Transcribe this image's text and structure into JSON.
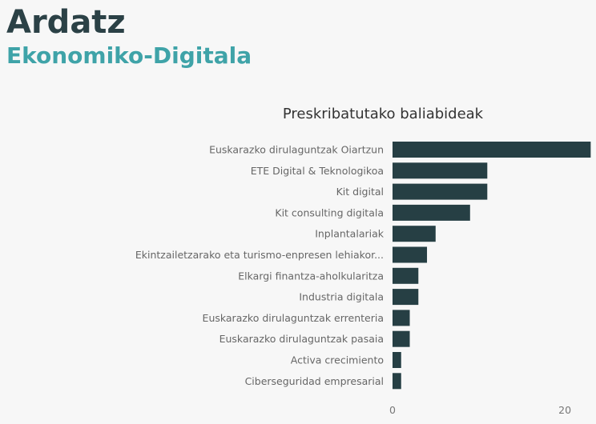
{
  "header": {
    "title": "Ardatz",
    "subtitle": "Ekonomiko-Digitala"
  },
  "colors": {
    "bar": "#263f44",
    "title": "#2b4146",
    "subtitle": "#3fa3a8"
  },
  "chart_data": {
    "type": "bar",
    "orientation": "horizontal",
    "title": "Preskribatutako baliabideak",
    "xlabel": "",
    "ylabel": "",
    "xlim": [
      0,
      22.5
    ],
    "xticks": [
      0,
      20
    ],
    "grid": false,
    "categories": [
      "Euskarazko dirulaguntzak Oiartzun",
      "ETE Digital & Teknologikoa",
      "Kit digital",
      "Kit consulting digitala",
      "Inplantalariak",
      "Ekintzailetzarako eta turismo-enpresen lehiakor...",
      "Elkargi finantza-aholkularitza",
      "Industria digitala",
      "Euskarazko dirulaguntzak errenteria",
      "Euskarazko dirulaguntzak pasaia",
      "Activa crecimiento",
      "Ciberseguridad empresarial"
    ],
    "values": [
      23,
      11,
      11,
      9,
      5,
      4,
      3,
      3,
      2,
      2,
      1,
      1
    ]
  }
}
